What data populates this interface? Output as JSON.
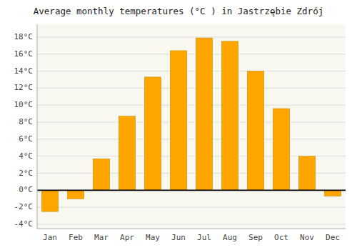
{
  "chart_data": {
    "type": "bar",
    "title": "Average monthly temperatures (°C ) in Jastrzębie Zdrój",
    "categories": [
      "Jan",
      "Feb",
      "Mar",
      "Apr",
      "May",
      "Jun",
      "Jul",
      "Aug",
      "Sep",
      "Oct",
      "Nov",
      "Dec"
    ],
    "values": [
      -2.5,
      -1.0,
      3.7,
      8.7,
      13.3,
      16.4,
      17.9,
      17.5,
      14.0,
      9.6,
      4.0,
      -0.7
    ],
    "color": "#FFA500",
    "ylim": [
      -4.5,
      19.5
    ],
    "yticks": [
      {
        "value": -4,
        "label": "-4°C"
      },
      {
        "value": -2,
        "label": "-2°C"
      },
      {
        "value": 0,
        "label": "0°C"
      },
      {
        "value": 2,
        "label": "2°C"
      },
      {
        "value": 4,
        "label": "4°C"
      },
      {
        "value": 6,
        "label": "6°C"
      },
      {
        "value": 8,
        "label": "8°C"
      },
      {
        "value": 10,
        "label": "10°C"
      },
      {
        "value": 12,
        "label": "12°C"
      },
      {
        "value": 14,
        "label": "14°C"
      },
      {
        "value": 16,
        "label": "16°C"
      },
      {
        "value": 18,
        "label": "18°C"
      }
    ],
    "grid": true
  }
}
